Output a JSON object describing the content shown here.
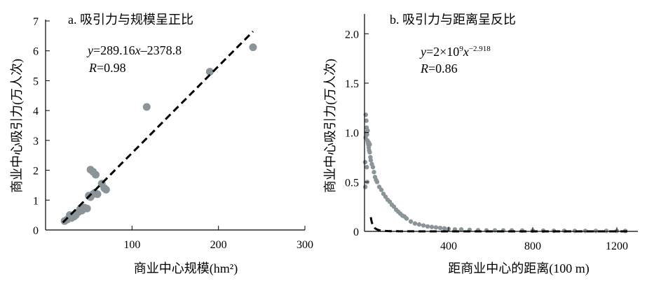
{
  "chart_data": [
    {
      "type": "scatter",
      "title": "a. 吸引力与规模呈正比",
      "xlabel": "商业中心规模(hm²)",
      "ylabel": "商业中心吸引力(万人次)",
      "xlim": [
        0,
        300
      ],
      "ylim": [
        0,
        7
      ],
      "xticks": [
        "100",
        "200",
        "300"
      ],
      "yticks": [
        "0",
        "1",
        "2",
        "3",
        "4",
        "5",
        "6",
        "7"
      ],
      "fit_equation_prefix": "y",
      "fit_equation_body": "=289.16",
      "fit_equation_var": "x",
      "fit_equation_rest": "–2378.8",
      "r_label": "R",
      "r_value": "=0.98",
      "fit_line": {
        "x": [
          20,
          240
        ],
        "y": [
          0.25,
          6.65
        ]
      },
      "points": {
        "x": [
          22,
          25,
          28,
          30,
          33,
          35,
          38,
          40,
          42,
          45,
          48,
          50,
          52,
          55,
          57,
          60,
          65,
          68,
          70,
          52,
          55,
          58,
          117,
          190,
          240,
          30,
          35
        ],
        "y": [
          0.3,
          0.35,
          0.5,
          0.4,
          0.45,
          0.55,
          0.6,
          0.7,
          0.65,
          0.75,
          0.72,
          1.15,
          1.1,
          1.2,
          1.25,
          1.2,
          1.55,
          1.4,
          1.35,
          2.02,
          1.95,
          1.85,
          4.12,
          5.3,
          6.12,
          0.45,
          0.5
        ]
      }
    },
    {
      "type": "scatter",
      "title": "b. 吸引力与距离呈反比",
      "xlabel": "距商业中心的距离(100 m)",
      "ylabel": "商业中心吸引力(万人次)",
      "xlim": [
        0,
        1300
      ],
      "ylim": [
        0,
        2.2
      ],
      "xticks": [
        "400",
        "800",
        "1200"
      ],
      "yticks": [
        "0",
        "0.5",
        "1.0",
        "1.5",
        "2.0"
      ],
      "fit_equation_prefix": "y",
      "fit_equation_body": "=2×10",
      "fit_equation_sup1": "9",
      "fit_equation_var": "x",
      "fit_equation_sup2": "−2.918",
      "r_label": "R",
      "r_value": "=0.86",
      "fit_model": {
        "a": 2000000000,
        "b": -2.918,
        "x_start": 30,
        "x_end": 1250
      },
      "points_description": "dense decay cloud",
      "points": {
        "x": [
          5,
          8,
          10,
          12,
          14,
          16,
          18,
          20,
          22,
          25,
          28,
          30,
          35,
          40,
          45,
          50,
          55,
          60,
          70,
          80,
          90,
          100,
          110,
          120,
          130,
          140,
          150,
          160,
          170,
          180,
          190,
          200,
          220,
          240,
          260,
          280,
          300,
          320,
          340,
          360,
          380,
          400,
          430,
          460,
          500,
          540,
          580,
          620,
          660,
          700,
          750,
          800,
          850,
          900,
          950,
          1000,
          1050,
          1100,
          1150,
          1200,
          1240,
          6,
          9,
          11,
          13,
          15,
          4,
          3,
          20,
          25
        ],
        "y": [
          0.95,
          1.0,
          1.05,
          0.98,
          0.92,
          0.9,
          0.88,
          0.85,
          0.82,
          0.8,
          0.75,
          0.72,
          0.68,
          0.65,
          0.6,
          0.55,
          0.52,
          0.5,
          0.45,
          0.42,
          0.38,
          0.35,
          0.32,
          0.3,
          0.27,
          0.25,
          0.22,
          0.2,
          0.18,
          0.16,
          0.15,
          0.13,
          0.1,
          0.08,
          0.07,
          0.06,
          0.05,
          0.045,
          0.04,
          0.035,
          0.03,
          0.025,
          0.02,
          0.02,
          0.015,
          0.012,
          0.01,
          0.01,
          0.01,
          0.01,
          0.008,
          0.008,
          0.007,
          0.006,
          0.006,
          0.005,
          0.005,
          0.005,
          0.005,
          0.005,
          0.005,
          1.18,
          1.12,
          0.65,
          0.5,
          1.02,
          0.45,
          0.7,
          0.9,
          0.88
        ]
      }
    }
  ]
}
